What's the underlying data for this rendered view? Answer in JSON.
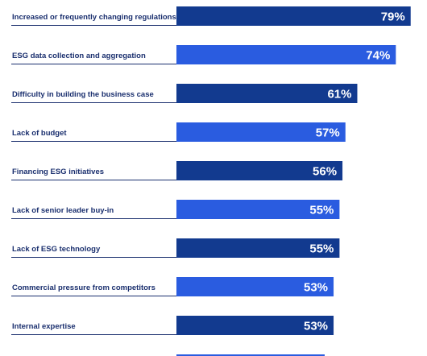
{
  "chart_data": {
    "type": "bar",
    "orientation": "horizontal",
    "categories": [
      "Increased or frequently changing regulations",
      "ESG data collection and aggregation",
      "Difficulty in building the business case",
      "Lack of budget",
      "Financing ESG initiatives",
      "Lack of senior leader buy-in",
      "Lack of ESG technology",
      "Commercial pressure from competitors",
      "Internal expertise",
      ""
    ],
    "values": [
      79,
      74,
      61,
      57,
      56,
      55,
      55,
      53,
      53,
      50
    ],
    "value_labels": [
      "79%",
      "74%",
      "61%",
      "57%",
      "56%",
      "55%",
      "55%",
      "53%",
      "53%",
      ""
    ],
    "xlim": [
      0,
      100
    ],
    "colors": [
      "#123a8f",
      "#2a5ce0"
    ],
    "grid": false,
    "legend": "none"
  }
}
